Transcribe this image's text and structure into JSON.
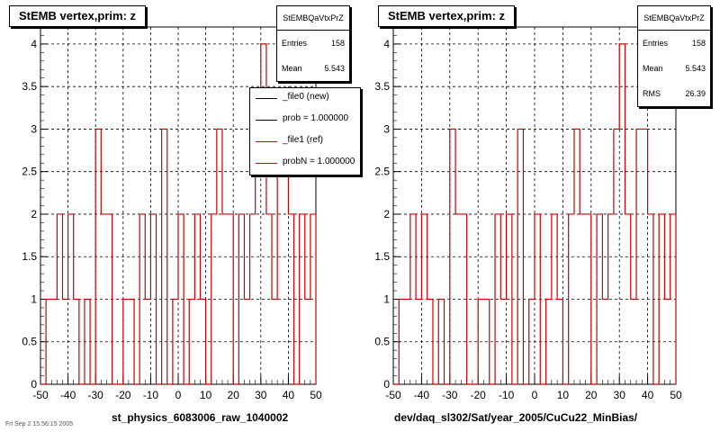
{
  "chart_data": [
    {
      "type": "histogram",
      "title": "StEMB  vertex,prim: z",
      "xlabel": "st_physics_6083006_raw_1040002",
      "xlim": [
        -50,
        50
      ],
      "ylim": [
        0,
        4.2
      ],
      "xticks": [
        -50,
        -40,
        -30,
        -20,
        -10,
        0,
        10,
        20,
        30,
        40,
        50
      ],
      "yticks": [
        0,
        0.5,
        1,
        1.5,
        2,
        2.5,
        3,
        3.5,
        4
      ],
      "grid": true,
      "bin_width": 2,
      "stats": {
        "name": "StEMBQaVtxPrZ",
        "entries_label": "Entries",
        "entries": "158",
        "mean_label": "Mean",
        "mean": "5.543"
      },
      "legend": {
        "placement": "top-right",
        "entries": [
          {
            "label": "_file0 (new)",
            "color": "#000000"
          },
          {
            "label": "prob = 1.000000",
            "color": "#000000"
          },
          {
            "label": "_file1 (ref)",
            "color": "#cc0000"
          },
          {
            "label": "probN = 1.000000",
            "color": "#cc0000"
          }
        ]
      },
      "series": [
        {
          "color": "#cc0000",
          "x_edges": [
            -50,
            -48,
            -46,
            -44,
            -42,
            -40,
            -38,
            -36,
            -34,
            -32,
            -30,
            -28,
            -26,
            -24,
            -22,
            -20,
            -18,
            -16,
            -14,
            -12,
            -10,
            -8,
            -6,
            -4,
            -2,
            0,
            2,
            4,
            6,
            8,
            10,
            12,
            14,
            16,
            18,
            20,
            22,
            24,
            26,
            28,
            30,
            32,
            34,
            36,
            38,
            40,
            42,
            44,
            46,
            48,
            50
          ],
          "counts": [
            0,
            1,
            1,
            2,
            1,
            2,
            1,
            0,
            1,
            0,
            3,
            2,
            2,
            0,
            0,
            1,
            1,
            0,
            2,
            1,
            2,
            0,
            3,
            0,
            1,
            2,
            0,
            1,
            2,
            1,
            0,
            2,
            3,
            2,
            2,
            0,
            2,
            1,
            2,
            3,
            4,
            2,
            1,
            3,
            3,
            2,
            0,
            2,
            1,
            2
          ]
        }
      ]
    },
    {
      "type": "histogram",
      "title": "StEMB  vertex,prim: z",
      "xlabel": "dev/daq_sl302/Sat/year_2005/CuCu22_MinBias/",
      "xlim": [
        -50,
        50
      ],
      "ylim": [
        0,
        4.2
      ],
      "xticks": [
        -50,
        -40,
        -30,
        -20,
        -10,
        0,
        10,
        20,
        30,
        40,
        50
      ],
      "yticks": [
        0,
        0.5,
        1,
        1.5,
        2,
        2.5,
        3,
        3.5,
        4
      ],
      "grid": true,
      "bin_width": 2,
      "stats": {
        "name": "StEMBQaVtxPrZ",
        "entries_label": "Entries",
        "entries": "158",
        "mean_label": "Mean",
        "mean": "5.543",
        "rms_label": "RMS",
        "rms": "26.39"
      },
      "series": [
        {
          "color": "#cc0000",
          "x_edges": [
            -50,
            -48,
            -46,
            -44,
            -42,
            -40,
            -38,
            -36,
            -34,
            -32,
            -30,
            -28,
            -26,
            -24,
            -22,
            -20,
            -18,
            -16,
            -14,
            -12,
            -10,
            -8,
            -6,
            -4,
            -2,
            0,
            2,
            4,
            6,
            8,
            10,
            12,
            14,
            16,
            18,
            20,
            22,
            24,
            26,
            28,
            30,
            32,
            34,
            36,
            38,
            40,
            42,
            44,
            46,
            48,
            50
          ],
          "counts": [
            0,
            1,
            1,
            2,
            1,
            2,
            1,
            0,
            1,
            0,
            3,
            2,
            2,
            0,
            0,
            1,
            1,
            0,
            2,
            1,
            2,
            0,
            3,
            0,
            1,
            2,
            0,
            1,
            2,
            1,
            0,
            2,
            3,
            2,
            2,
            0,
            2,
            1,
            2,
            3,
            4,
            2,
            1,
            3,
            3,
            2,
            0,
            2,
            1,
            2
          ]
        }
      ]
    }
  ],
  "footer": "Fri Sep  2 15:56:15 2005"
}
